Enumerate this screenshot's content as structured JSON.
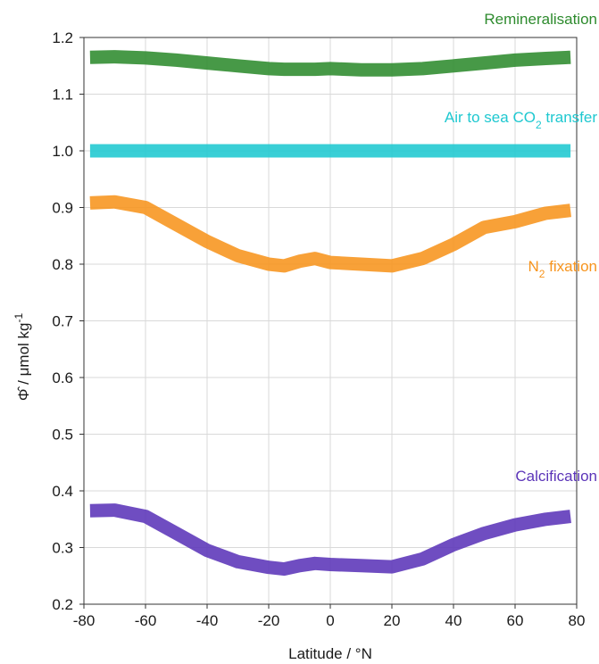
{
  "chart_data": {
    "type": "line",
    "xlabel": "Latitude / °N",
    "ylabel": {
      "symbol": "Φ̂",
      "sep": " / ",
      "unit": "μmol kg",
      "exp": "-1"
    },
    "xlim": [
      -80,
      80
    ],
    "ylim": [
      0.2,
      1.2
    ],
    "xticks": [
      "-80",
      "-60",
      "-40",
      "-20",
      "0",
      "20",
      "40",
      "60",
      "80"
    ],
    "yticks": [
      "0.2",
      "0.3",
      "0.4",
      "0.5",
      "0.6",
      "0.7",
      "0.8",
      "0.9",
      "1.0",
      "1.1",
      "1.2"
    ],
    "grid": true,
    "x": [
      -78,
      -70,
      -60,
      -50,
      -40,
      -30,
      -20,
      -15,
      -10,
      -5,
      0,
      10,
      20,
      30,
      40,
      50,
      60,
      70,
      78
    ],
    "series": [
      {
        "label_parts": [
          "Remineralisation"
        ],
        "color": "#2e8b2e",
        "values": [
          1.165,
          1.166,
          1.164,
          1.16,
          1.155,
          1.15,
          1.145,
          1.144,
          1.144,
          1.144,
          1.145,
          1.143,
          1.143,
          1.145,
          1.15,
          1.155,
          1.16,
          1.163,
          1.165
        ]
      },
      {
        "label_parts": [
          "Air to sea CO",
          "2",
          " transfer"
        ],
        "color": "#1ec8d0",
        "values": [
          1.0,
          1.0,
          1.0,
          1.0,
          1.0,
          1.0,
          1.0,
          1.0,
          1.0,
          1.0,
          1.0,
          1.0,
          1.0,
          1.0,
          1.0,
          1.0,
          1.0,
          1.0,
          1.0
        ]
      },
      {
        "label_parts": [
          "N",
          "2",
          " fixation"
        ],
        "color": "#f7941d",
        "values": [
          0.908,
          0.91,
          0.9,
          0.87,
          0.84,
          0.815,
          0.8,
          0.797,
          0.805,
          0.81,
          0.803,
          0.8,
          0.797,
          0.81,
          0.835,
          0.865,
          0.875,
          0.89,
          0.895
        ]
      },
      {
        "label_parts": [
          "Calcification"
        ],
        "color": "#5b34b8",
        "values": [
          0.365,
          0.366,
          0.355,
          0.325,
          0.295,
          0.275,
          0.265,
          0.262,
          0.268,
          0.272,
          0.27,
          0.268,
          0.266,
          0.28,
          0.305,
          0.325,
          0.34,
          0.35,
          0.355
        ]
      }
    ]
  }
}
